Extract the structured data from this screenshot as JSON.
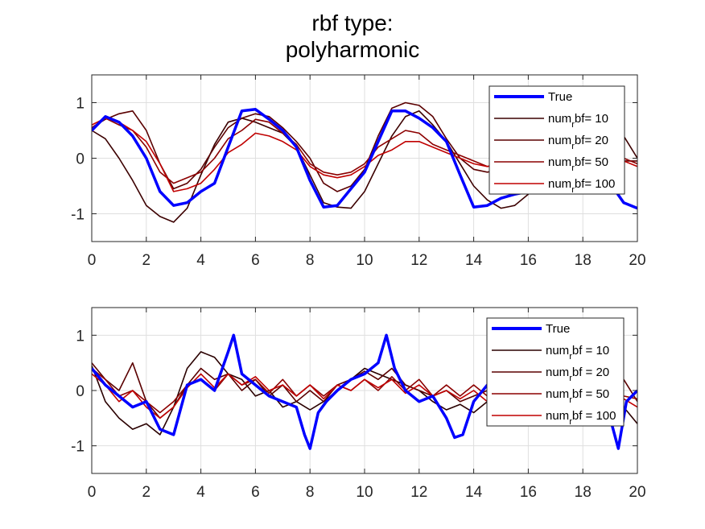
{
  "figure": {
    "title_line1": "rbf type:",
    "title_line2": "polyharmonic"
  },
  "chart_data": [
    {
      "type": "line",
      "xlim": [
        0,
        20
      ],
      "ylim": [
        -1.5,
        1.5
      ],
      "xticks": [
        0,
        2,
        4,
        6,
        8,
        10,
        12,
        14,
        16,
        18,
        20
      ],
      "yticks": [
        -1,
        0,
        1
      ],
      "grid": true,
      "legend_position": "top-right",
      "series": [
        {
          "name": "True",
          "color": "#0000ff",
          "bold": true,
          "x": [
            0,
            0.5,
            1,
            1.5,
            2,
            2.5,
            3,
            3.5,
            4,
            4.5,
            5,
            5.5,
            6,
            6.5,
            7,
            7.5,
            8,
            8.5,
            9,
            9.5,
            10,
            10.5,
            11,
            11.5,
            12,
            12.5,
            13,
            13.5,
            14,
            14.5,
            15,
            15.5,
            16,
            16.5,
            17,
            17.5,
            18,
            18.5,
            19,
            19.5,
            20
          ],
          "y": [
            0.5,
            0.75,
            0.65,
            0.4,
            0.0,
            -0.6,
            -0.85,
            -0.8,
            -0.6,
            -0.45,
            0.2,
            0.85,
            0.88,
            0.7,
            0.5,
            0.2,
            -0.4,
            -0.88,
            -0.85,
            -0.55,
            -0.25,
            0.3,
            0.85,
            0.85,
            0.72,
            0.55,
            0.3,
            -0.3,
            -0.88,
            -0.85,
            -0.72,
            -0.65,
            -0.6,
            -0.6,
            -0.58,
            -0.55,
            -0.45,
            -0.3,
            -0.45,
            -0.8,
            -0.9
          ]
        },
        {
          "name_main": "num",
          "name_sub": "r",
          "name_rest": "bf= 10",
          "color": "#3c0000",
          "x": [
            0,
            0.5,
            1,
            1.5,
            2,
            2.5,
            3,
            3.5,
            4,
            4.5,
            5,
            5.5,
            6,
            6.5,
            7,
            7.5,
            8,
            8.5,
            9,
            9.5,
            10,
            10.5,
            11,
            11.5,
            12,
            12.5,
            13,
            13.5,
            14,
            14.5,
            15,
            15.5,
            16,
            16.5,
            17,
            17.5,
            18,
            18.5,
            19,
            19.5,
            20
          ],
          "y": [
            0.5,
            0.35,
            0.0,
            -0.4,
            -0.85,
            -1.05,
            -1.15,
            -0.9,
            -0.3,
            0.25,
            0.65,
            0.72,
            0.65,
            0.55,
            0.45,
            0.2,
            -0.3,
            -0.8,
            -0.88,
            -0.9,
            -0.6,
            -0.1,
            0.4,
            0.75,
            0.85,
            0.6,
            0.3,
            -0.1,
            -0.5,
            -0.75,
            -0.9,
            -0.85,
            -0.65,
            -0.45,
            -0.25,
            -0.05,
            0.2,
            0.35,
            0.45,
            0.4,
            0.0
          ]
        },
        {
          "name_main": "num",
          "name_sub": "r",
          "name_rest": "bf= 20",
          "color": "#5a0000",
          "x": [
            0,
            0.5,
            1,
            1.5,
            2,
            2.5,
            3,
            3.5,
            4,
            4.5,
            5,
            5.5,
            6,
            6.5,
            7,
            7.5,
            8,
            8.5,
            9,
            9.5,
            10,
            10.5,
            11,
            11.5,
            12,
            12.5,
            13,
            13.5,
            14,
            14.5,
            15,
            15.5,
            16,
            16.5,
            17,
            17.5,
            18,
            18.5,
            19,
            19.5,
            20
          ],
          "y": [
            0.55,
            0.7,
            0.8,
            0.85,
            0.5,
            -0.1,
            -0.55,
            -0.45,
            -0.2,
            0.2,
            0.55,
            0.72,
            0.8,
            0.75,
            0.55,
            0.3,
            0.0,
            -0.45,
            -0.6,
            -0.5,
            -0.2,
            0.4,
            0.9,
            1.0,
            0.95,
            0.75,
            0.35,
            0.0,
            -0.2,
            -0.25,
            -0.2,
            -0.15,
            -0.1,
            -0.05,
            0.0,
            -0.05,
            -0.1,
            -0.15,
            -0.1,
            -0.05,
            -0.05
          ]
        },
        {
          "name_main": "num",
          "name_sub": "r",
          "name_rest": "bf= 50",
          "color": "#8c0000",
          "x": [
            0,
            0.5,
            1,
            1.5,
            2,
            2.5,
            3,
            3.5,
            4,
            4.5,
            5,
            5.5,
            6,
            6.5,
            7,
            7.5,
            8,
            8.5,
            9,
            9.5,
            10,
            10.5,
            11,
            11.5,
            12,
            12.5,
            13,
            13.5,
            14,
            14.5,
            15,
            15.5,
            16,
            16.5,
            17,
            17.5,
            18,
            18.5,
            19,
            19.5,
            20
          ],
          "y": [
            0.55,
            0.72,
            0.6,
            0.5,
            0.2,
            -0.25,
            -0.45,
            -0.35,
            -0.25,
            0.0,
            0.35,
            0.5,
            0.7,
            0.65,
            0.45,
            0.25,
            -0.1,
            -0.25,
            -0.3,
            -0.25,
            -0.1,
            0.2,
            0.35,
            0.5,
            0.45,
            0.25,
            0.15,
            0.05,
            -0.05,
            -0.15,
            -0.1,
            -0.05,
            0.0,
            -0.05,
            0.0,
            -0.1,
            -0.05,
            0.0,
            -0.05,
            0.0,
            -0.1
          ]
        },
        {
          "name_main": "num",
          "name_sub": "r",
          "name_rest": "bf= 100",
          "color": "#c00000",
          "x": [
            0,
            0.5,
            1,
            1.5,
            2,
            2.5,
            3,
            3.5,
            4,
            4.5,
            5,
            5.5,
            6,
            6.5,
            7,
            7.5,
            8,
            8.5,
            9,
            9.5,
            10,
            10.5,
            11,
            11.5,
            12,
            12.5,
            13,
            13.5,
            14,
            14.5,
            15,
            15.5,
            16,
            16.5,
            17,
            17.5,
            18,
            18.5,
            19,
            19.5,
            20
          ],
          "y": [
            0.6,
            0.72,
            0.65,
            0.5,
            0.3,
            -0.1,
            -0.6,
            -0.55,
            -0.45,
            -0.2,
            0.1,
            0.25,
            0.45,
            0.4,
            0.3,
            0.15,
            -0.15,
            -0.3,
            -0.35,
            -0.3,
            -0.15,
            0.05,
            0.15,
            0.3,
            0.3,
            0.2,
            0.1,
            0.0,
            -0.1,
            -0.15,
            -0.1,
            -0.05,
            0.0,
            -0.05,
            0.0,
            -0.05,
            -0.1,
            -0.05,
            0.0,
            -0.05,
            -0.15
          ]
        }
      ]
    },
    {
      "type": "line",
      "xlim": [
        0,
        20
      ],
      "ylim": [
        -1.5,
        1.5
      ],
      "xticks": [
        0,
        2,
        4,
        6,
        8,
        10,
        12,
        14,
        16,
        18,
        20
      ],
      "yticks": [
        -1,
        0,
        1
      ],
      "grid": true,
      "legend_position": "top-right",
      "series": [
        {
          "name": "True",
          "color": "#0000ff",
          "bold": true,
          "x": [
            0,
            0.5,
            1,
            1.5,
            2,
            2.5,
            3,
            3.5,
            4,
            4.5,
            5,
            5.2,
            5.5,
            6,
            6.5,
            7,
            7.5,
            7.8,
            8,
            8.3,
            8.6,
            9,
            9.5,
            10,
            10.5,
            10.8,
            11.1,
            11.5,
            12,
            12.5,
            13,
            13.3,
            13.6,
            14,
            14.5,
            15,
            15.5,
            16,
            16.5,
            17,
            17.5,
            18,
            18.5,
            19,
            19.3,
            19.6,
            20
          ],
          "y": [
            0.4,
            0.1,
            -0.1,
            -0.3,
            -0.2,
            -0.7,
            -0.8,
            0.1,
            0.2,
            0.0,
            0.7,
            1.0,
            0.3,
            0.1,
            -0.1,
            -0.2,
            -0.3,
            -0.8,
            -1.05,
            -0.4,
            -0.2,
            0.0,
            0.2,
            0.3,
            0.5,
            1.0,
            0.4,
            0.0,
            -0.2,
            -0.1,
            -0.5,
            -0.85,
            -0.8,
            -0.2,
            0.1,
            0.0,
            0.05,
            -0.1,
            0.05,
            0.1,
            -0.05,
            0.0,
            -0.15,
            -0.5,
            -1.05,
            -0.2,
            0.0
          ]
        },
        {
          "name_main": "num",
          "name_sub": "r",
          "name_rest": "bf = 10",
          "color": "#2a0000",
          "x": [
            0,
            0.5,
            1,
            1.5,
            2,
            2.5,
            3,
            3.5,
            4,
            4.5,
            5,
            5.5,
            6,
            6.5,
            7,
            7.5,
            8,
            8.5,
            9,
            9.5,
            10,
            10.5,
            11,
            11.5,
            12,
            12.5,
            13,
            13.5,
            14,
            14.5,
            15,
            15.5,
            16,
            16.5,
            17,
            17.5,
            18,
            18.5,
            19,
            19.5,
            20
          ],
          "y": [
            0.45,
            -0.2,
            -0.5,
            -0.7,
            -0.6,
            -0.8,
            -0.3,
            0.4,
            0.7,
            0.6,
            0.3,
            0.2,
            -0.1,
            0.0,
            -0.3,
            -0.2,
            -0.35,
            -0.2,
            0.0,
            0.2,
            0.4,
            0.3,
            0.2,
            0.1,
            0.0,
            -0.2,
            -0.35,
            -0.25,
            -0.4,
            -0.2,
            -0.3,
            -0.1,
            -0.2,
            -0.1,
            0.0,
            -0.1,
            0.0,
            0.2,
            0.0,
            -0.3,
            -0.6
          ]
        },
        {
          "name_main": "num",
          "name_sub": "r",
          "name_rest": "bf = 20",
          "color": "#5a0000",
          "x": [
            0,
            0.5,
            1,
            1.5,
            2,
            2.5,
            3,
            3.5,
            4,
            4.5,
            5,
            5.5,
            6,
            6.5,
            7,
            7.5,
            8,
            8.5,
            9,
            9.5,
            10,
            10.5,
            11,
            11.5,
            12,
            12.5,
            13,
            13.5,
            14,
            14.5,
            15,
            15.5,
            16,
            16.5,
            17,
            17.5,
            18,
            18.5,
            19,
            19.5,
            20
          ],
          "y": [
            0.5,
            0.2,
            0.0,
            0.5,
            -0.2,
            -0.5,
            -0.3,
            0.1,
            0.4,
            0.2,
            0.3,
            0.0,
            0.2,
            -0.1,
            0.1,
            -0.2,
            0.0,
            -0.2,
            0.1,
            0.2,
            0.35,
            0.2,
            0.4,
            0.1,
            0.0,
            -0.1,
            0.0,
            -0.2,
            -0.1,
            0.0,
            -0.15,
            0.0,
            -0.1,
            0.0,
            -0.1,
            0.05,
            0.0,
            -0.1,
            0.1,
            0.2,
            -0.2
          ]
        },
        {
          "name_main": "num",
          "name_sub": "r",
          "name_rest": "bf = 50",
          "color": "#8c0000",
          "x": [
            0,
            0.5,
            1,
            1.5,
            2,
            2.5,
            3,
            3.5,
            4,
            4.5,
            5,
            5.5,
            6,
            6.5,
            7,
            7.5,
            8,
            8.5,
            9,
            9.5,
            10,
            10.5,
            11,
            11.5,
            12,
            12.5,
            13,
            13.5,
            14,
            14.5,
            15,
            15.5,
            16,
            16.5,
            17,
            17.5,
            18,
            18.5,
            19,
            19.5,
            20
          ],
          "y": [
            0.4,
            0.2,
            -0.1,
            0.0,
            -0.2,
            -0.4,
            -0.2,
            0.1,
            0.2,
            0.0,
            0.3,
            0.1,
            0.2,
            -0.05,
            0.2,
            -0.1,
            0.1,
            -0.1,
            0.1,
            0.0,
            0.2,
            0.0,
            0.25,
            0.0,
            0.2,
            -0.1,
            0.1,
            -0.1,
            0.1,
            -0.1,
            0.0,
            -0.1,
            0.05,
            -0.05,
            0.0,
            -0.1,
            0.05,
            -0.05,
            0.1,
            -0.1,
            -0.15
          ]
        },
        {
          "name_main": "num",
          "name_sub": "r",
          "name_rest": "bf = 100",
          "color": "#c00000",
          "x": [
            0,
            0.5,
            1,
            1.5,
            2,
            2.5,
            3,
            3.5,
            4,
            4.5,
            5,
            5.5,
            6,
            6.5,
            7,
            7.5,
            8,
            8.5,
            9,
            9.5,
            10,
            10.5,
            11,
            11.5,
            12,
            12.5,
            13,
            13.5,
            14,
            14.5,
            15,
            15.5,
            16,
            16.5,
            17,
            17.5,
            18,
            18.5,
            19,
            19.5,
            20
          ],
          "y": [
            0.3,
            0.1,
            -0.2,
            0.0,
            -0.3,
            -0.5,
            -0.3,
            0.05,
            0.3,
            0.05,
            0.3,
            0.1,
            0.25,
            0.0,
            0.1,
            -0.1,
            0.1,
            -0.15,
            0.1,
            0.0,
            0.2,
            0.05,
            0.2,
            -0.05,
            0.1,
            -0.1,
            0.0,
            -0.15,
            0.0,
            -0.2,
            0.0,
            -0.05,
            0.05,
            -0.1,
            0.0,
            -0.05,
            0.05,
            -0.1,
            0.0,
            -0.15,
            -0.3
          ]
        }
      ]
    }
  ]
}
